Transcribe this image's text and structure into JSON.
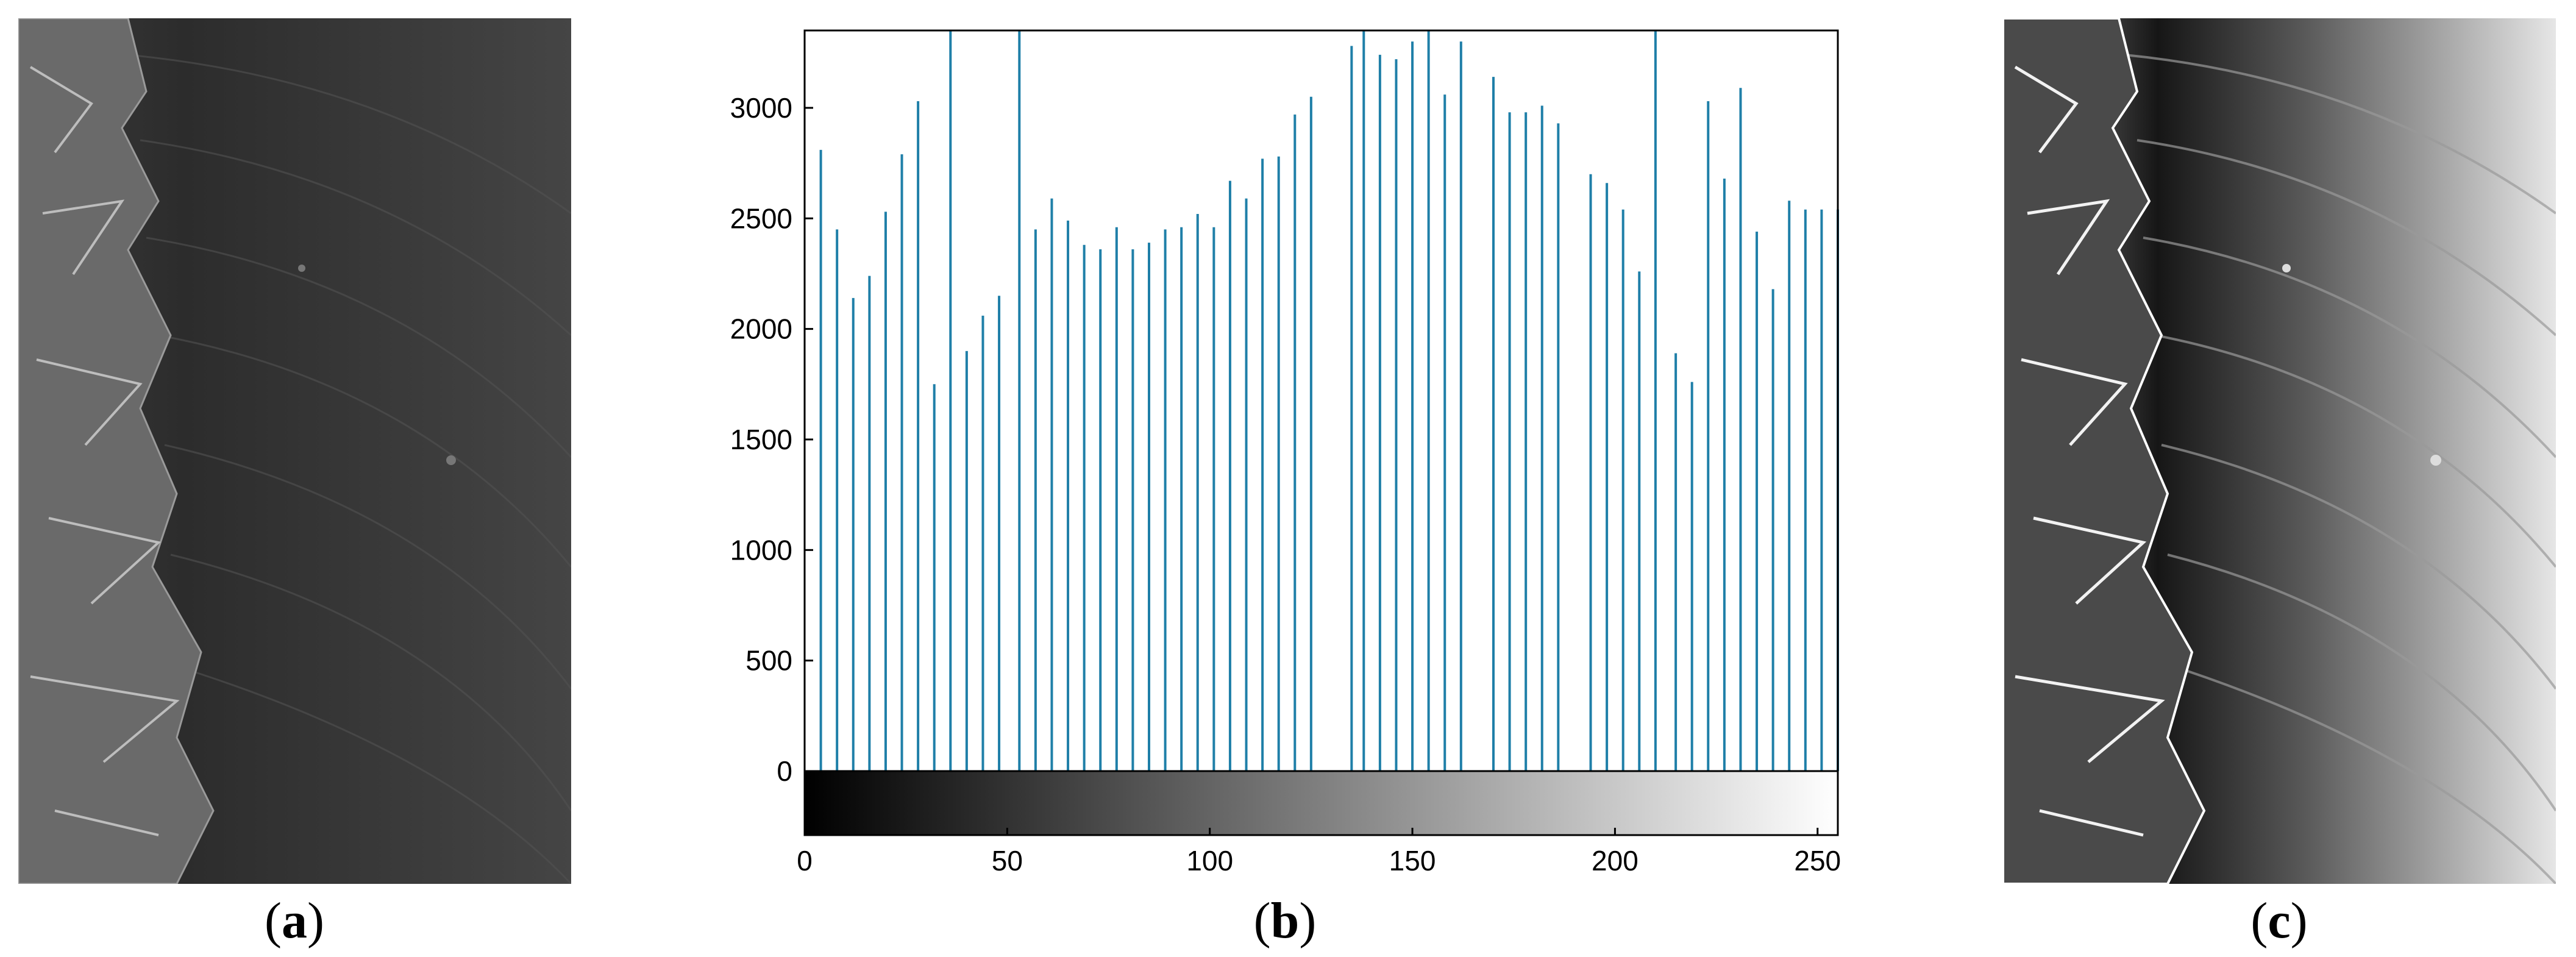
{
  "figure": {
    "panels": [
      {
        "id": "a",
        "caption_open": "(",
        "caption_letter": "a",
        "caption_close": ")",
        "description_icon": "sem-micrograph-original"
      },
      {
        "id": "b",
        "caption_open": "(",
        "caption_letter": "b",
        "caption_close": ")"
      },
      {
        "id": "c",
        "caption_open": "(",
        "caption_letter": "c",
        "caption_close": ")",
        "description_icon": "sem-micrograph-equalized"
      }
    ]
  },
  "chart_data": {
    "type": "bar",
    "title": "",
    "xlabel": "",
    "ylabel": "",
    "xlim": [
      0,
      255
    ],
    "ylim": [
      0,
      3350
    ],
    "x_ticks": [
      0,
      50,
      100,
      150,
      200,
      250
    ],
    "y_ticks": [
      0,
      500,
      1000,
      1500,
      2000,
      2500,
      3000
    ],
    "grid": false,
    "colorbar": "grayscale 0-255 below x-axis",
    "bar_color": "#1f7fa8",
    "x": [
      4,
      8,
      12,
      16,
      20,
      24,
      28,
      32,
      36,
      40,
      44,
      48,
      53,
      57,
      61,
      65,
      69,
      73,
      77,
      81,
      85,
      89,
      93,
      97,
      101,
      105,
      109,
      113,
      117,
      121,
      125,
      135,
      138,
      142,
      146,
      150,
      154,
      158,
      162,
      170,
      174,
      178,
      182,
      186,
      194,
      198,
      202,
      206,
      210,
      215,
      219,
      223,
      227,
      231,
      235,
      239,
      243,
      247,
      251,
      255
    ],
    "values": [
      2810,
      2450,
      2140,
      2240,
      2530,
      2790,
      3030,
      1750,
      3350,
      1900,
      2060,
      2150,
      3350,
      2450,
      2590,
      2490,
      2380,
      2360,
      2460,
      2360,
      2390,
      2450,
      2460,
      2520,
      2460,
      2670,
      2590,
      2770,
      2780,
      2970,
      3050,
      3280,
      3350,
      3240,
      3220,
      3300,
      3350,
      3060,
      3300,
      3140,
      2980,
      2980,
      3010,
      2930,
      2700,
      2660,
      2540,
      2260,
      3350,
      1890,
      1760,
      3030,
      2680,
      3090,
      2440,
      2180,
      2580,
      2540,
      2540,
      2540
    ]
  }
}
